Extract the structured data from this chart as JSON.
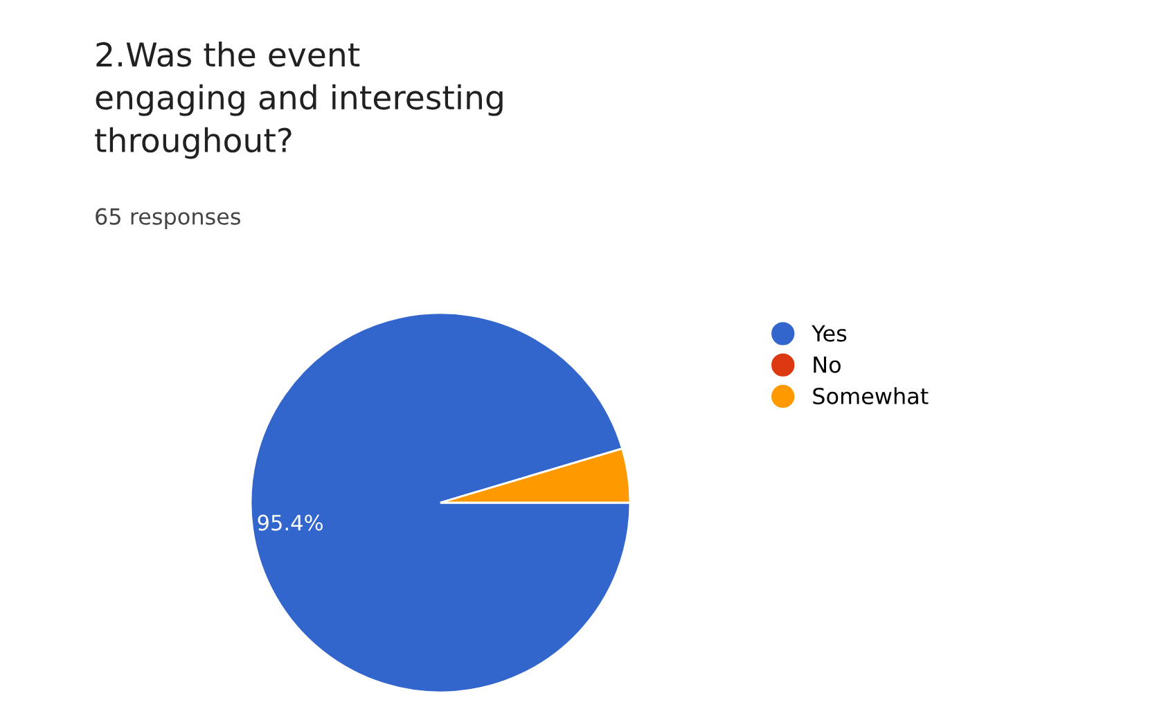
{
  "chart_data": {
    "type": "pie",
    "title": "2.Was the event\nengaging and interesting\nthroughout?",
    "subtitle": "65 responses",
    "categories": [
      "Yes",
      "No",
      "Somewhat"
    ],
    "values": [
      95.4,
      0,
      4.6
    ],
    "colors": [
      "#3366cc",
      "#dc3912",
      "#ff9900"
    ],
    "value_labels": [
      "95.4%",
      null,
      null
    ],
    "legend": "right"
  }
}
